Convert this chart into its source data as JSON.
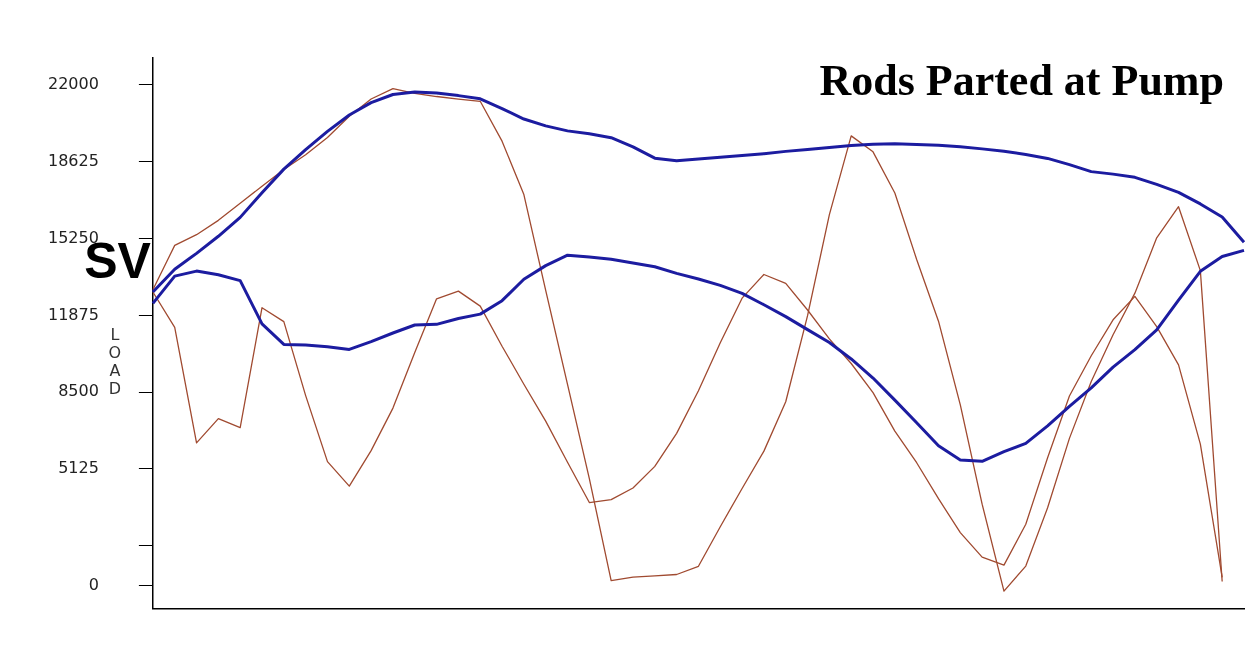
{
  "chart_data": {
    "type": "line",
    "title": "Rods Parted at Pump",
    "ylabel": "LOAD",
    "annotations": [
      "SV"
    ],
    "categories": [
      null,
      null,
      null,
      null,
      null,
      null,
      null,
      null,
      null,
      null,
      null,
      null,
      null,
      null,
      null,
      null,
      null,
      null,
      null,
      null,
      null,
      null,
      null,
      null,
      null,
      null,
      null,
      null,
      null,
      null,
      null,
      null,
      null,
      null,
      null,
      null,
      null,
      null,
      null,
      null,
      null,
      null,
      null,
      null,
      null,
      null,
      null,
      null,
      null,
      null,
      null
    ],
    "ylim": [
      -1000,
      23200
    ],
    "yticks": [
      0,
      {
        "value": 1750,
        "label": null
      },
      5125,
      8500,
      11875,
      15250,
      18625,
      22000
    ],
    "tick_labels": "y",
    "grid": false,
    "legend": false,
    "marker": "none",
    "line_style": "solid",
    "series": [
      {
        "color": "#1c1ca0",
        "values": [
          12900,
          13900,
          14600,
          15350,
          16180,
          17260,
          18300,
          19160,
          19960,
          20680,
          21220,
          21580,
          21690,
          21640,
          21530,
          21390,
          20960,
          20500,
          20200,
          19980,
          19850,
          19680,
          19280,
          18780,
          18670,
          18740,
          18820,
          18900,
          18980,
          19080,
          19160,
          19250,
          19340,
          19390,
          19410,
          19380,
          19350,
          19280,
          19190,
          19090,
          18940,
          18770,
          18500,
          18190,
          18080,
          17940,
          17630,
          17280,
          16770,
          16200,
          15090
        ]
      },
      {
        "color": "#1c1ca0",
        "values": [
          12400,
          13600,
          13820,
          13660,
          13400,
          11500,
          10600,
          10570,
          10500,
          10380,
          10720,
          11100,
          11450,
          11480,
          11740,
          11930,
          12520,
          13460,
          14060,
          14520,
          14440,
          14340,
          14180,
          14010,
          13720,
          13470,
          13190,
          12840,
          12340,
          11820,
          11250,
          10680,
          9960,
          9120,
          8150,
          7160,
          6150,
          5520,
          5460,
          5890,
          6250,
          7020,
          7880,
          8690,
          9600,
          10370,
          11240,
          12540,
          13810,
          14460,
          14730
        ]
      },
      {
        "color": "#a04a30",
        "values": [
          13000,
          14950,
          15420,
          16050,
          16800,
          17550,
          18280,
          18930,
          19690,
          20620,
          21380,
          21840,
          21630,
          21490,
          21380,
          21280,
          19530,
          17180,
          12970,
          8840,
          4700,
          220,
          370,
          430,
          490,
          850,
          2590,
          4270,
          5910,
          8080,
          11860,
          16300,
          19760,
          19060,
          17250,
          14330,
          11620,
          7940,
          3580,
          -240,
          860,
          3420,
          6470,
          8970,
          11020,
          12850,
          15280,
          16650,
          13840,
          180,
          null
        ]
      },
      {
        "color": "#a04a30",
        "values": [
          12900,
          11350,
          6270,
          7340,
          6940,
          12210,
          11600,
          8350,
          5450,
          4370,
          5930,
          7800,
          10240,
          12600,
          12940,
          12280,
          10520,
          8850,
          7230,
          5420,
          3650,
          3780,
          4290,
          5240,
          6690,
          8560,
          10670,
          12630,
          13670,
          13280,
          12110,
          10840,
          9760,
          8480,
          6790,
          5400,
          3820,
          2330,
          1250,
          900,
          2700,
          5620,
          8330,
          10100,
          11680,
          12710,
          11380,
          9700,
          6220,
          360,
          null
        ]
      }
    ]
  }
}
